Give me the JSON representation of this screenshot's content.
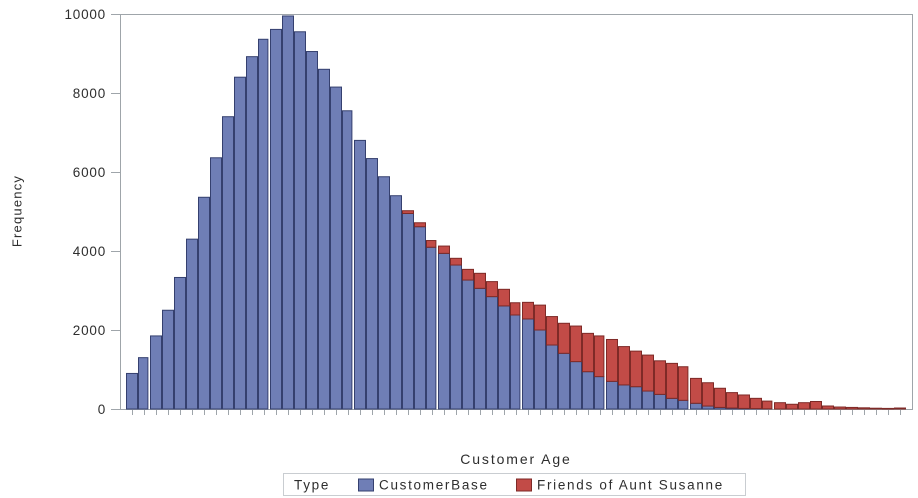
{
  "colors": {
    "axis_and_frame": "#9fa5aa",
    "text": "#2e2e2e",
    "background": "#ffffff",
    "legend_border": "#c9cdd1"
  },
  "chart_data": {
    "type": "bar",
    "subtype": "stacked-histogram",
    "title": "",
    "xlabel": "Customer Age",
    "ylabel": "Frequency",
    "ylim": [
      0,
      10000
    ],
    "y_ticks": [
      0,
      2000,
      4000,
      6000,
      8000,
      10000
    ],
    "x_tick_labels_visible": false,
    "bins": 65,
    "grid": false,
    "legend_position": "bottom",
    "legend_title": "Type",
    "series": [
      {
        "name": "CustomerBase",
        "color": "#6f7eb6",
        "border_color": "#35406f",
        "values": [
          900,
          1300,
          1850,
          2500,
          3330,
          4300,
          5360,
          6360,
          7400,
          8400,
          8920,
          9360,
          9610,
          9950,
          9550,
          9050,
          8600,
          8150,
          7550,
          6800,
          6340,
          5880,
          5400,
          4950,
          4615,
          4095,
          3940,
          3645,
          3265,
          3055,
          2845,
          2610,
          2380,
          2280,
          2000,
          1620,
          1410,
          1200,
          945,
          820,
          700,
          610,
          565,
          455,
          370,
          270,
          220,
          145,
          75,
          40,
          25,
          15,
          10,
          5,
          0,
          0,
          0,
          0,
          0,
          0,
          0,
          0,
          0,
          0,
          0
        ]
      },
      {
        "name": "Friends of Aunt Susanne",
        "color": "#c24b47",
        "border_color": "#7e2a27",
        "values": [
          0,
          0,
          0,
          0,
          0,
          0,
          0,
          0,
          0,
          0,
          0,
          0,
          0,
          0,
          0,
          0,
          0,
          0,
          0,
          0,
          0,
          0,
          0,
          70,
          100,
          170,
          185,
          170,
          270,
          380,
          380,
          420,
          310,
          420,
          630,
          720,
          760,
          900,
          970,
          1030,
          1060,
          970,
          900,
          910,
          850,
          885,
          850,
          630,
          590,
          485,
          390,
          340,
          260,
          195,
          160,
          120,
          160,
          190,
          76,
          50,
          40,
          30,
          20,
          15,
          25
        ]
      }
    ]
  }
}
